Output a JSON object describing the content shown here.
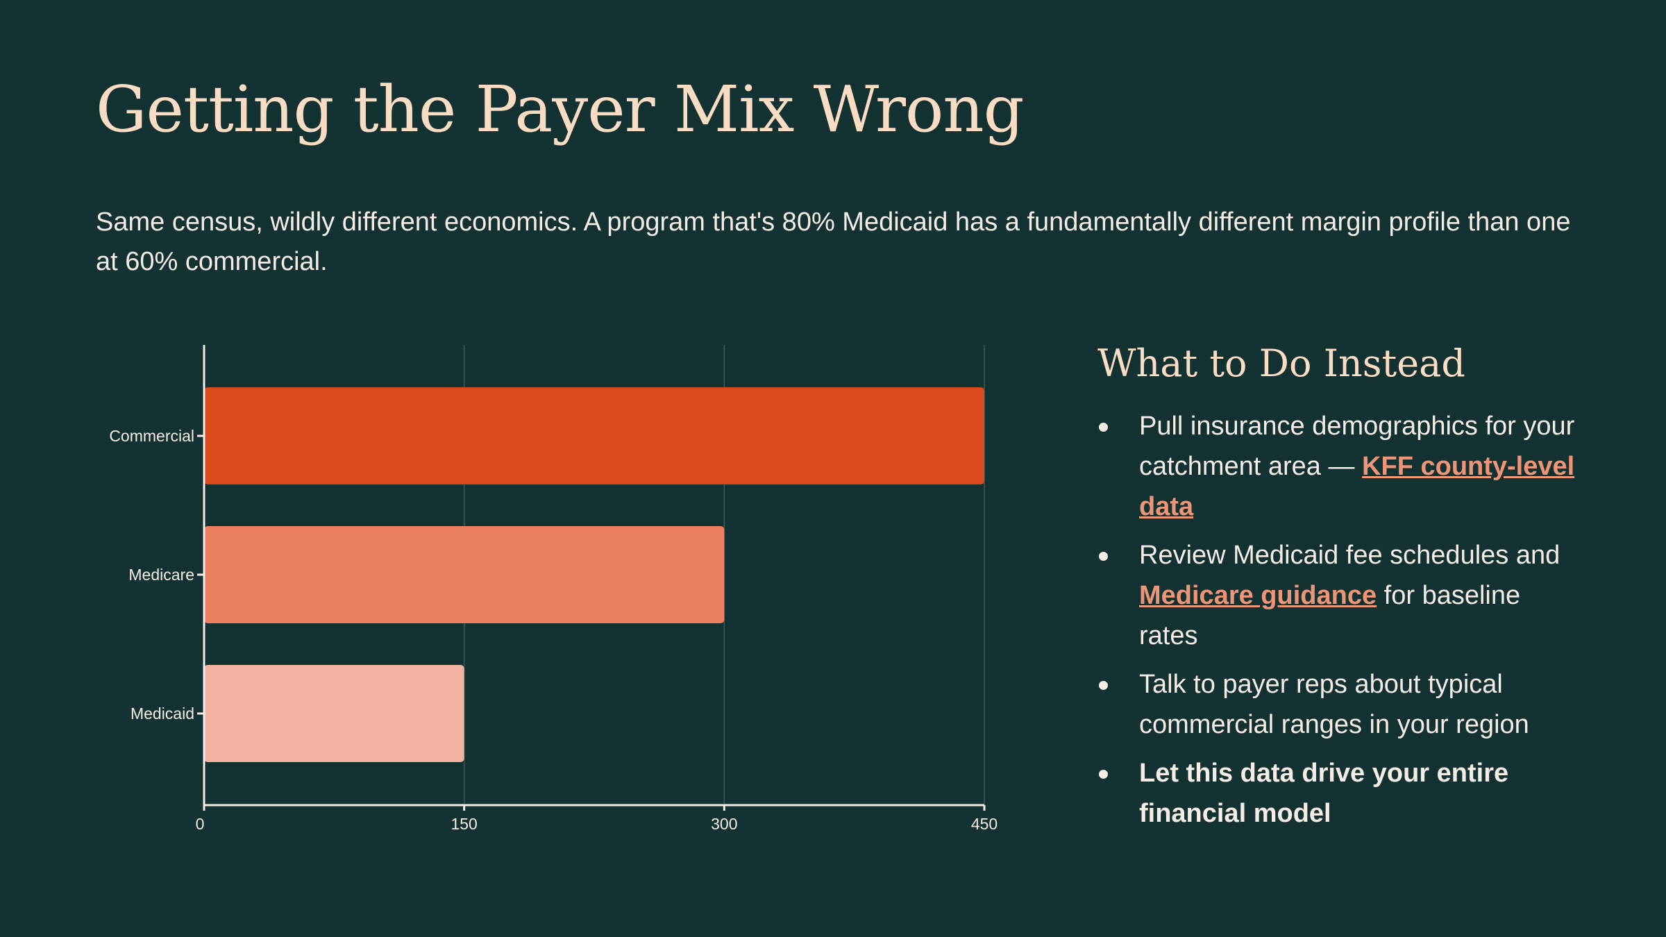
{
  "title": "Getting the Payer Mix Wrong",
  "subtitle": "Same census, wildly different economics. A program that's 80% Medicaid has a fundamentally different margin profile than one at 60% commercial.",
  "chart_data": {
    "type": "bar",
    "orientation": "horizontal",
    "categories": [
      "Commercial",
      "Medicare",
      "Medicaid"
    ],
    "values": [
      450,
      300,
      150
    ],
    "colors": [
      "#db4a1d",
      "#eb7f60",
      "#f3b3a3"
    ],
    "xlim": [
      0,
      450
    ],
    "xticks": [
      "0",
      "150",
      "300",
      "450"
    ],
    "xtick_values": [
      0,
      150,
      300,
      450
    ],
    "grid": true,
    "title": "",
    "xlabel": "",
    "ylabel": ""
  },
  "side": {
    "heading": "What to Do Instead",
    "items": [
      {
        "pre": "Pull insurance demographics for your catchment area — ",
        "link": "KFF county-level data",
        "post": ""
      },
      {
        "pre": "Review Medicaid fee schedules and ",
        "link": "Medicare guidance",
        "post": " for baseline rates"
      },
      {
        "pre": "Talk to payer reps about typical commercial ranges in your region",
        "link": null,
        "post": ""
      },
      {
        "pre": "Let this data drive your entire financial model",
        "link": null,
        "post": ""
      }
    ]
  }
}
